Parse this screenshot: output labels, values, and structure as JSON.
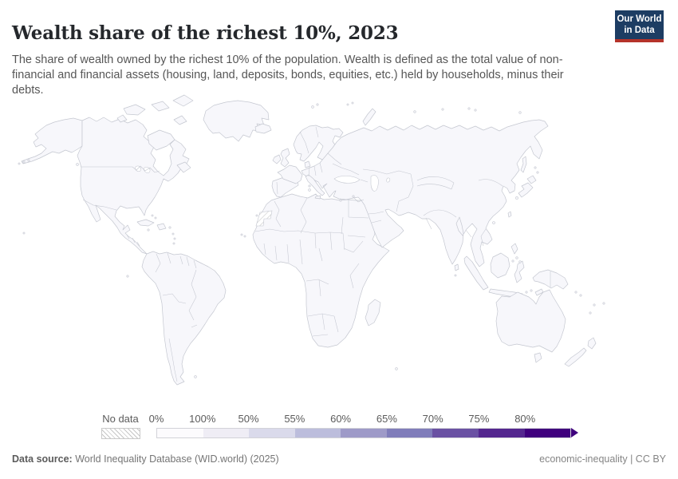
{
  "header": {
    "title": "Wealth share of the richest 10%, 2023",
    "subtitle": "The share of wealth owned by the richest 10% of the population. Wealth is defined as the total value of non-financial and financial assets (housing, land, deposits, bonds, equities, etc.) held by households, minus their debts.",
    "logo_line1": "Our World",
    "logo_line2": "in Data"
  },
  "legend": {
    "no_data_label": "No data",
    "ticks": [
      "0%",
      "100%",
      "50%",
      "55%",
      "60%",
      "65%",
      "70%",
      "75%",
      "80%"
    ],
    "colors": [
      "#fcfbfd",
      "#efedf5",
      "#dadaeb",
      "#bcbddc",
      "#9e9ac8",
      "#807dba",
      "#6a51a3",
      "#54278f",
      "#3f007d"
    ]
  },
  "footer": {
    "source_label": "Data source:",
    "source_value": " World Inequality Database (WID.world) (2025)",
    "right_text": "economic-inequality | CC BY"
  },
  "colors": {
    "logo_bg": "#1d3d63",
    "logo_red": "#b5332a",
    "map_fill": "#f7f7fb",
    "map_stroke": "#c4c7d0"
  },
  "chart_data": {
    "type": "heatmap",
    "subtype": "world-choropleth-map",
    "title": "Wealth share of the richest 10%, 2023",
    "unit": "%",
    "legend_position": "bottom",
    "legend_bins": [
      {
        "label": "0%",
        "color": "#fcfbfd"
      },
      {
        "label": "100%",
        "color": "#efedf5"
      },
      {
        "label": "50%",
        "color": "#dadaeb"
      },
      {
        "label": "55%",
        "color": "#bcbddc"
      },
      {
        "label": "60%",
        "color": "#9e9ac8"
      },
      {
        "label": "65%",
        "color": "#807dba"
      },
      {
        "label": "70%",
        "color": "#6a51a3"
      },
      {
        "label": "75%",
        "color": "#54278f"
      },
      {
        "label": "80%",
        "color": "#3f007d"
      }
    ],
    "no_data": {
      "label": "No data",
      "style": "hatched"
    },
    "note": "All countries on the map are rendered in the blank/lightest fill; no country-level shading values are visibly distinguishable in the image."
  }
}
